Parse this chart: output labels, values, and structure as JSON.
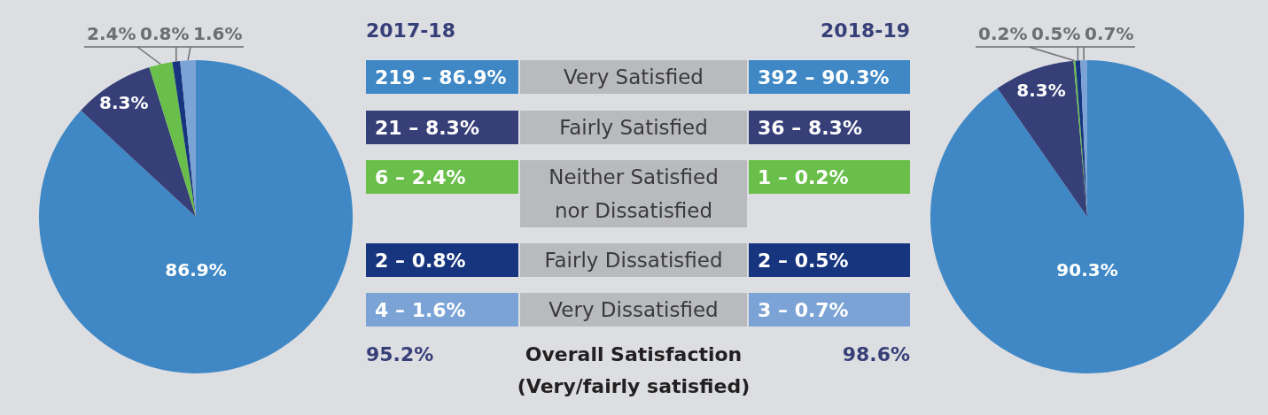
{
  "chart_data": [
    {
      "type": "pie",
      "categories": [
        null,
        null,
        null,
        null,
        null
      ],
      "values": [
        86.9,
        8.3,
        2.4,
        0.8,
        1.6
      ],
      "colors": [
        "#3f88c5",
        "#373f78",
        "#6abf4b",
        "#17357f",
        "#7ba3d6"
      ],
      "value_labels": [
        "86.9%",
        "8.3%",
        "2.4%",
        "0.8%",
        "1.6%"
      ]
    },
    {
      "type": "other",
      "annotations": [
        "2017-18",
        "2018-19",
        "219 – 86.9%",
        "Very Satisfied",
        "392 – 90.3%",
        "21 – 8.3%",
        "Fairly Satisfied",
        "36 – 8.3%",
        "6 – 2.4%",
        "Neither Satisfied nor Dissatisfied",
        "1 – 0.2%",
        "2 – 0.8%",
        "Fairly Dissatisfied",
        "2 – 0.5%",
        "4 – 1.6%",
        "Very Dissatisfied",
        "3 – 0.7%",
        "95.2%",
        "Overall Satisfaction",
        "(Very/fairly satisfied)",
        "98.6%"
      ]
    },
    {
      "type": "pie",
      "categories": [
        null,
        null,
        null,
        null,
        null
      ],
      "values": [
        90.3,
        8.3,
        0.2,
        0.5,
        0.7
      ],
      "colors": [
        "#3f88c5",
        "#373f78",
        "#6abf4b",
        "#17357f",
        "#7ba3d6"
      ],
      "value_labels": [
        "90.3%",
        "8.3%",
        "0.2%",
        "0.5%",
        "0.7%"
      ]
    }
  ]
}
